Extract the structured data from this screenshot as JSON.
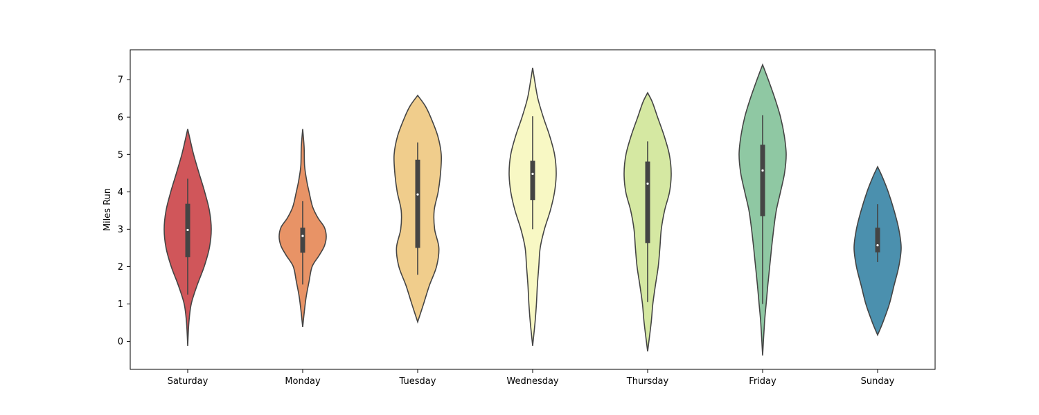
{
  "chart_data": {
    "type": "violin",
    "title": "",
    "xlabel": "",
    "ylabel": "Miles Run",
    "ylim": [
      -0.75,
      7.8
    ],
    "yticks": [
      0,
      1,
      2,
      3,
      4,
      5,
      6,
      7
    ],
    "grid": false,
    "categories": [
      "Saturday",
      "Monday",
      "Tuesday",
      "Wednesday",
      "Thursday",
      "Friday",
      "Sunday"
    ],
    "colors": [
      "#d0565a",
      "#e89366",
      "#f0cd8c",
      "#f8f8c4",
      "#d5e8a2",
      "#8fc8a3",
      "#4b90ae"
    ],
    "violins": [
      {
        "day": "Saturday",
        "min": -0.12,
        "max": 5.68,
        "q1": 2.25,
        "median": 2.98,
        "q3": 3.68,
        "whisker_low": 1.25,
        "whisker_high": 4.35,
        "density": [
          [
            -0.12,
            0.0
          ],
          [
            0.5,
            0.05
          ],
          [
            1.0,
            0.15
          ],
          [
            1.5,
            0.4
          ],
          [
            2.0,
            0.7
          ],
          [
            2.5,
            0.92
          ],
          [
            3.0,
            1.0
          ],
          [
            3.5,
            0.92
          ],
          [
            4.0,
            0.72
          ],
          [
            4.5,
            0.48
          ],
          [
            5.0,
            0.25
          ],
          [
            5.4,
            0.1
          ],
          [
            5.68,
            0.0
          ]
        ]
      },
      {
        "day": "Monday",
        "min": 0.38,
        "max": 5.68,
        "q1": 2.37,
        "median": 2.82,
        "q3": 3.04,
        "whisker_low": 1.52,
        "whisker_high": 3.75,
        "density": [
          [
            0.38,
            0.0
          ],
          [
            0.8,
            0.07
          ],
          [
            1.2,
            0.15
          ],
          [
            1.6,
            0.27
          ],
          [
            2.0,
            0.4
          ],
          [
            2.3,
            0.7
          ],
          [
            2.55,
            0.92
          ],
          [
            2.8,
            1.0
          ],
          [
            3.05,
            0.92
          ],
          [
            3.3,
            0.65
          ],
          [
            3.6,
            0.42
          ],
          [
            4.0,
            0.27
          ],
          [
            4.3,
            0.17
          ],
          [
            4.7,
            0.08
          ],
          [
            5.2,
            0.06
          ],
          [
            5.68,
            0.0
          ]
        ]
      },
      {
        "day": "Tuesday",
        "min": 0.52,
        "max": 6.58,
        "q1": 2.5,
        "median": 3.93,
        "q3": 4.86,
        "whisker_low": 1.78,
        "whisker_high": 5.32,
        "density": [
          [
            0.52,
            0.0
          ],
          [
            1.0,
            0.25
          ],
          [
            1.5,
            0.5
          ],
          [
            2.0,
            0.8
          ],
          [
            2.5,
            0.9
          ],
          [
            3.0,
            0.72
          ],
          [
            3.5,
            0.7
          ],
          [
            4.0,
            0.87
          ],
          [
            4.5,
            0.97
          ],
          [
            5.0,
            1.0
          ],
          [
            5.5,
            0.85
          ],
          [
            6.0,
            0.55
          ],
          [
            6.3,
            0.32
          ],
          [
            6.58,
            0.0
          ]
        ]
      },
      {
        "day": "Wednesday",
        "min": -0.12,
        "max": 7.32,
        "q1": 3.78,
        "median": 4.48,
        "q3": 4.83,
        "whisker_low": 3.0,
        "whisker_high": 6.02,
        "density": [
          [
            -0.12,
            0.0
          ],
          [
            0.5,
            0.1
          ],
          [
            1.0,
            0.16
          ],
          [
            1.5,
            0.2
          ],
          [
            2.0,
            0.26
          ],
          [
            2.5,
            0.32
          ],
          [
            3.0,
            0.5
          ],
          [
            3.5,
            0.75
          ],
          [
            4.0,
            0.93
          ],
          [
            4.5,
            1.0
          ],
          [
            5.0,
            0.93
          ],
          [
            5.5,
            0.72
          ],
          [
            6.0,
            0.45
          ],
          [
            6.5,
            0.22
          ],
          [
            7.0,
            0.08
          ],
          [
            7.32,
            0.0
          ]
        ]
      },
      {
        "day": "Thursday",
        "min": -0.27,
        "max": 6.65,
        "q1": 2.63,
        "median": 4.22,
        "q3": 4.81,
        "whisker_low": 1.05,
        "whisker_high": 5.35,
        "density": [
          [
            -0.27,
            0.0
          ],
          [
            0.5,
            0.15
          ],
          [
            1.0,
            0.22
          ],
          [
            1.5,
            0.33
          ],
          [
            2.0,
            0.45
          ],
          [
            2.5,
            0.52
          ],
          [
            3.0,
            0.58
          ],
          [
            3.5,
            0.72
          ],
          [
            4.0,
            0.93
          ],
          [
            4.5,
            1.0
          ],
          [
            5.0,
            0.92
          ],
          [
            5.5,
            0.7
          ],
          [
            6.0,
            0.42
          ],
          [
            6.4,
            0.2
          ],
          [
            6.65,
            0.0
          ]
        ]
      },
      {
        "day": "Friday",
        "min": -0.38,
        "max": 7.4,
        "q1": 3.35,
        "median": 4.57,
        "q3": 5.26,
        "whisker_low": 1.0,
        "whisker_high": 6.05,
        "density": [
          [
            -0.38,
            0.0
          ],
          [
            0.5,
            0.08
          ],
          [
            1.0,
            0.15
          ],
          [
            1.5,
            0.22
          ],
          [
            2.0,
            0.3
          ],
          [
            2.5,
            0.38
          ],
          [
            3.0,
            0.47
          ],
          [
            3.5,
            0.58
          ],
          [
            4.0,
            0.76
          ],
          [
            4.5,
            0.93
          ],
          [
            5.0,
            1.0
          ],
          [
            5.5,
            0.92
          ],
          [
            6.0,
            0.76
          ],
          [
            6.5,
            0.52
          ],
          [
            7.0,
            0.24
          ],
          [
            7.4,
            0.0
          ]
        ]
      },
      {
        "day": "Sunday",
        "min": 0.17,
        "max": 4.67,
        "q1": 2.38,
        "median": 2.57,
        "q3": 3.04,
        "whisker_low": 2.12,
        "whisker_high": 3.67,
        "density": [
          [
            0.17,
            0.0
          ],
          [
            0.5,
            0.22
          ],
          [
            1.0,
            0.5
          ],
          [
            1.5,
            0.7
          ],
          [
            2.0,
            0.9
          ],
          [
            2.5,
            1.0
          ],
          [
            3.0,
            0.9
          ],
          [
            3.5,
            0.7
          ],
          [
            4.0,
            0.45
          ],
          [
            4.4,
            0.2
          ],
          [
            4.67,
            0.0
          ]
        ]
      }
    ]
  }
}
